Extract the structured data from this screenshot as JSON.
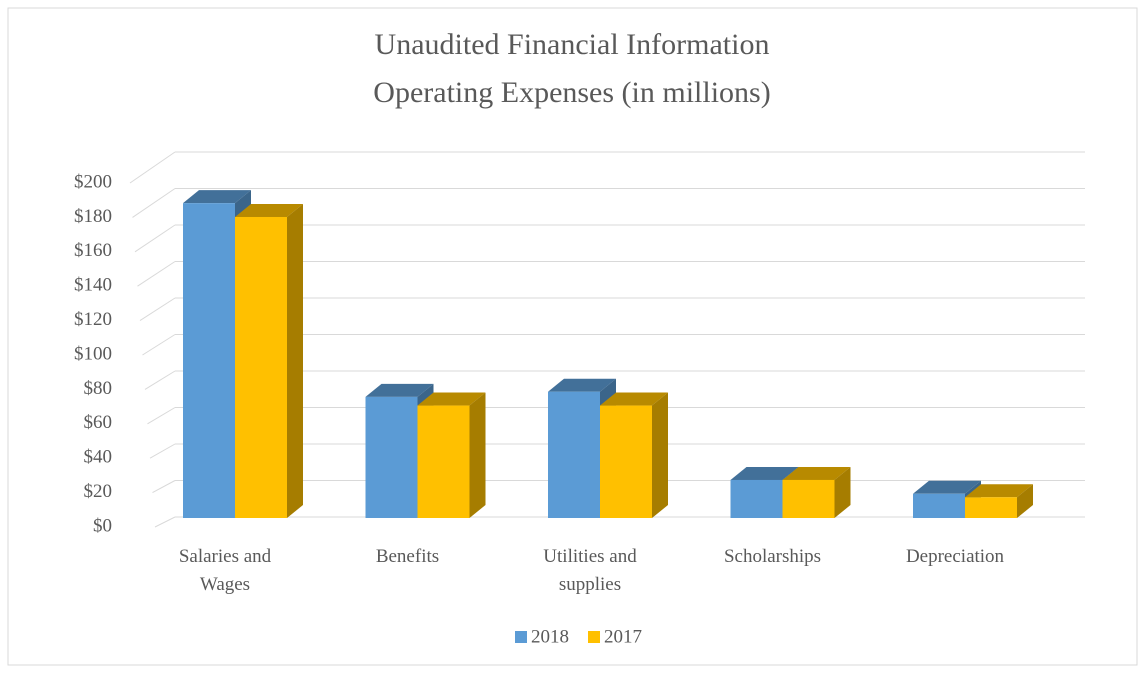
{
  "chart_data": {
    "type": "bar3d",
    "title": "Unaudited Financial Information",
    "subtitle": "Operating Expenses (in millions)",
    "categories": [
      "Salaries and Wages",
      "Benefits",
      "Utilities and supplies",
      "Scholarships",
      "Depreciation"
    ],
    "series": [
      {
        "name": "2018",
        "color": "#5b9bd5",
        "values": [
          182,
          70,
          73,
          22,
          14
        ]
      },
      {
        "name": "2017",
        "color": "#ffc000",
        "values": [
          174,
          65,
          65,
          22,
          12
        ]
      }
    ],
    "ylim": [
      0,
      200
    ],
    "yticks": [
      {
        "value": 0,
        "label": "$0"
      },
      {
        "value": 20,
        "label": "$20"
      },
      {
        "value": 40,
        "label": "$40"
      },
      {
        "value": 60,
        "label": "$60"
      },
      {
        "value": 80,
        "label": "$80"
      },
      {
        "value": 100,
        "label": "$100"
      },
      {
        "value": 120,
        "label": "$120"
      },
      {
        "value": 140,
        "label": "$140"
      },
      {
        "value": 160,
        "label": "$160"
      },
      {
        "value": 180,
        "label": "$180"
      },
      {
        "value": 200,
        "label": "$200"
      }
    ],
    "grid": true,
    "legend": "bottom"
  }
}
